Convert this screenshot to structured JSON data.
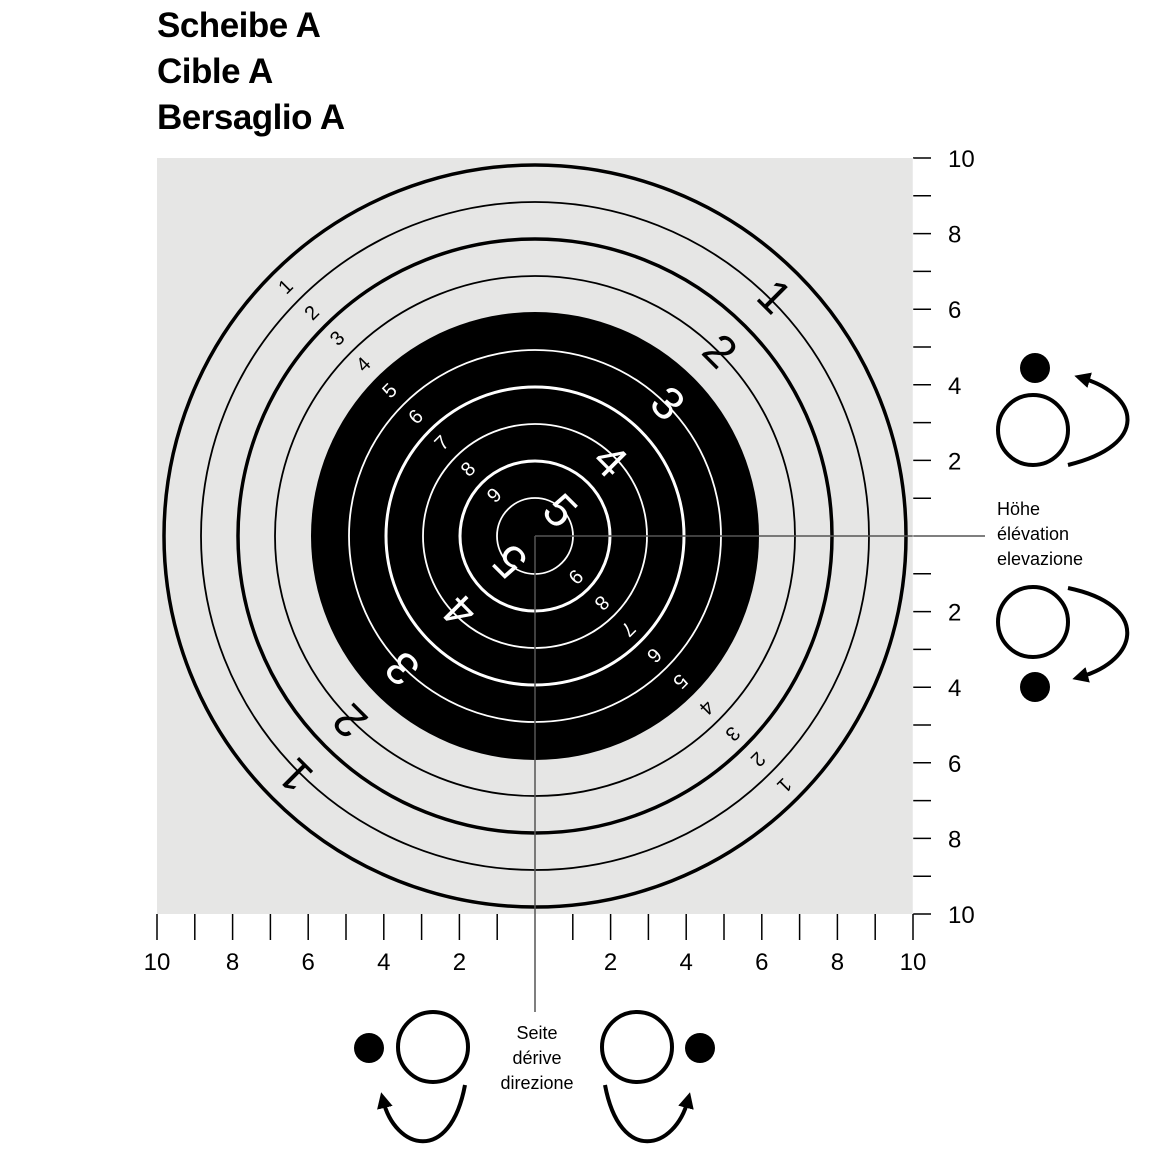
{
  "title": {
    "line1": "Scheibe A",
    "line2": "Cible A",
    "line3": "Bersaglio A"
  },
  "colors": {
    "background": "#e6e6e5",
    "black": "#000000",
    "white": "#ffffff"
  },
  "right_axis": {
    "labels": [
      "10",
      "8",
      "6",
      "4",
      "2",
      "2",
      "4",
      "6",
      "8",
      "10"
    ]
  },
  "bottom_axis": {
    "labels": [
      "10",
      "8",
      "6",
      "4",
      "2",
      "2",
      "4",
      "6",
      "8",
      "10"
    ]
  },
  "ring_numbers_small": [
    "1",
    "2",
    "3",
    "4",
    "5",
    "6",
    "7",
    "8",
    "9"
  ],
  "ring_numbers_large": [
    "1",
    "2",
    "3",
    "4",
    "5"
  ],
  "elevation_label": {
    "line1": "Höhe",
    "line2": "élévation",
    "line3": "elevazione"
  },
  "windage_label": {
    "line1": "Seite",
    "line2": "dérive",
    "line3": "direzione"
  }
}
